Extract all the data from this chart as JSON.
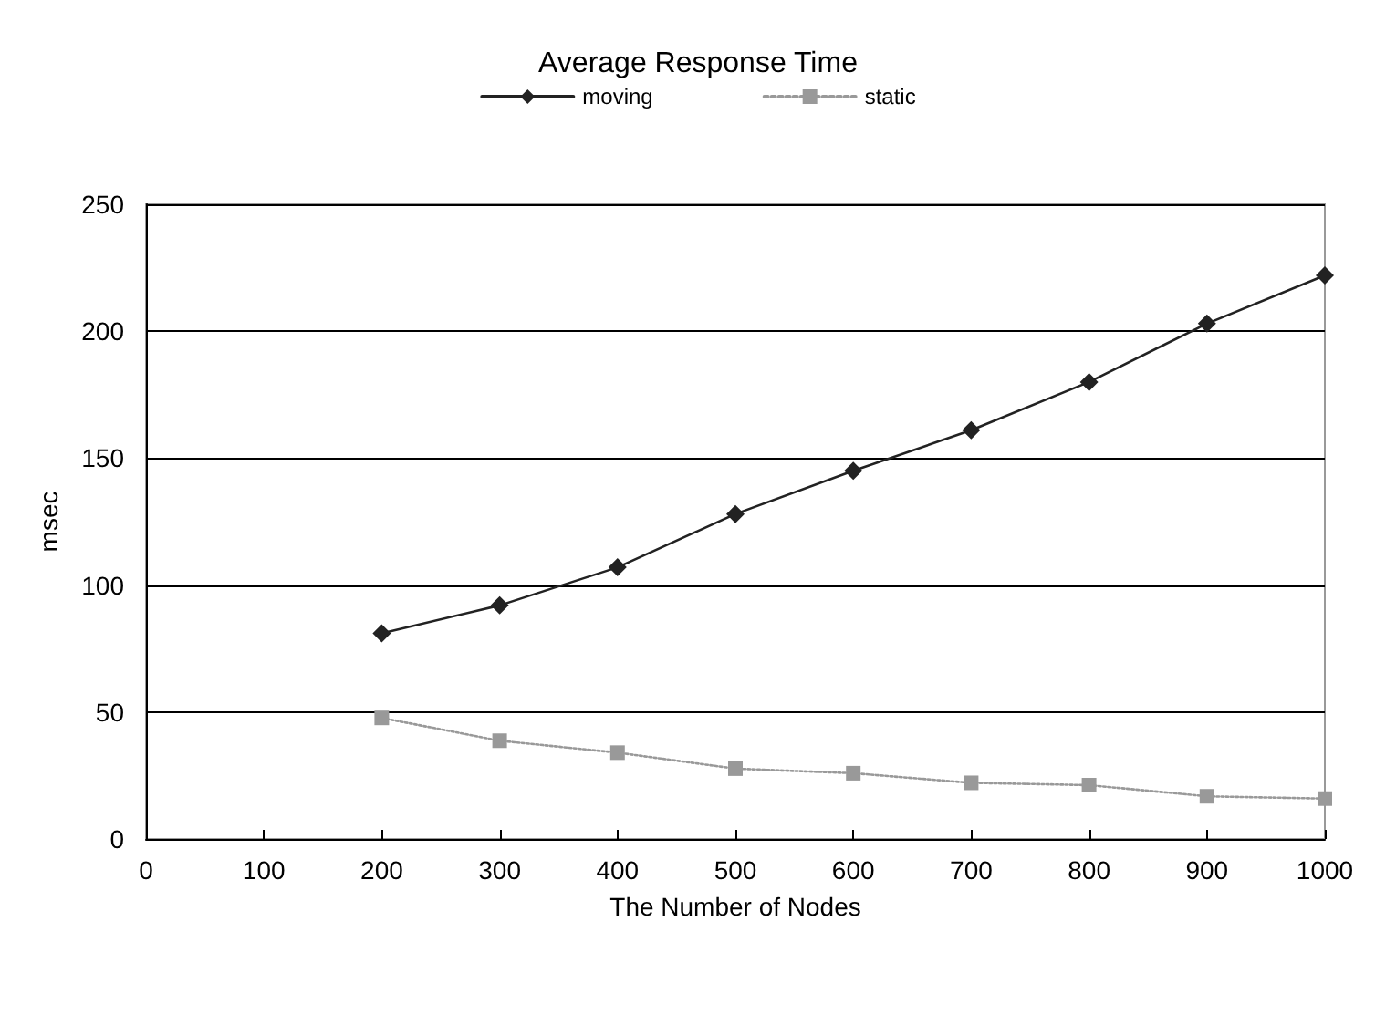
{
  "chart_data": {
    "type": "line",
    "title": "Average Response Time",
    "xlabel": "The Number of Nodes",
    "ylabel": "msec",
    "x": [
      200,
      300,
      400,
      500,
      600,
      700,
      800,
      900,
      1000
    ],
    "series": [
      {
        "name": "moving",
        "color": "#222222",
        "marker": "diamond",
        "line_style": "solid",
        "values": [
          81,
          92,
          107,
          128,
          145,
          161,
          180,
          203,
          222
        ]
      },
      {
        "name": "static",
        "color": "#999999",
        "marker": "square",
        "line_style": "dotted",
        "values": [
          47.7,
          38.7,
          34,
          27.7,
          25.9,
          22.1,
          21.2,
          16.8,
          15.9
        ]
      }
    ],
    "xlim": [
      0,
      1000
    ],
    "xticks": [
      0,
      100,
      200,
      300,
      400,
      500,
      600,
      700,
      800,
      900,
      1000
    ],
    "ylim": [
      0,
      250
    ],
    "yticks": [
      0,
      50,
      100,
      150,
      200,
      250
    ],
    "grid": "y",
    "legend": "top"
  }
}
